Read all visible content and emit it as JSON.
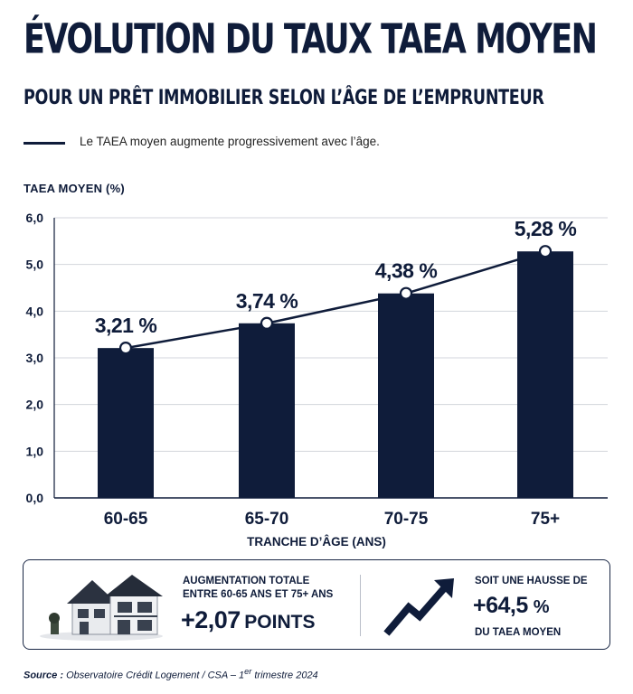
{
  "header": {
    "title": "ÉVOLUTION DU TAUX TAEA MOYEN",
    "subtitle": "POUR UN PRÊT IMMOBILIER SELON L’ÂGE DE L’EMPRUNTEUR"
  },
  "legend": {
    "text": "Le TAEA moyen augmente progressivement avec l’âge."
  },
  "chart_data": {
    "type": "bar",
    "ylabel": "TAEA MOYEN (%)",
    "xlabel": "TRANCHE D’ÂGE (ANS)",
    "categories": [
      "60-65",
      "65-70",
      "70-75",
      "75+"
    ],
    "values": [
      3.21,
      3.74,
      4.38,
      5.28
    ],
    "data_labels": [
      "3,21 %",
      "3,74 %",
      "4,38 %",
      "5,28 %"
    ],
    "ylim": [
      0,
      6
    ],
    "yticks": [
      "0,0",
      "1,0",
      "2,0",
      "3,0",
      "4,0",
      "5,0",
      "6,0"
    ],
    "grid": true,
    "overlay_line": true,
    "colors": {
      "bar": "#0f1c3a",
      "line": "#0f1c3a",
      "grid": "#d3d6dc",
      "marker_fill": "#ffffff"
    }
  },
  "summary": {
    "box1": {
      "label_line1": "AUGMENTATION TOTALE",
      "label_line2": "ENTRE 60-65 ANS ET 75+ ANS",
      "value": "+2,07",
      "unit": "POINTS",
      "icon": "house-icon"
    },
    "box2": {
      "label_top": "SOIT UNE HAUSSE DE",
      "value": "+64,5",
      "unit": "%",
      "label_bottom": "DU TAEA MOYEN",
      "icon": "trend-up-arrow-icon"
    }
  },
  "source": {
    "prefix": "Source :",
    "text": "Observatoire Crédit Logement / CSA – 1",
    "sup": "er",
    "suffix": " trimestre 2024"
  }
}
